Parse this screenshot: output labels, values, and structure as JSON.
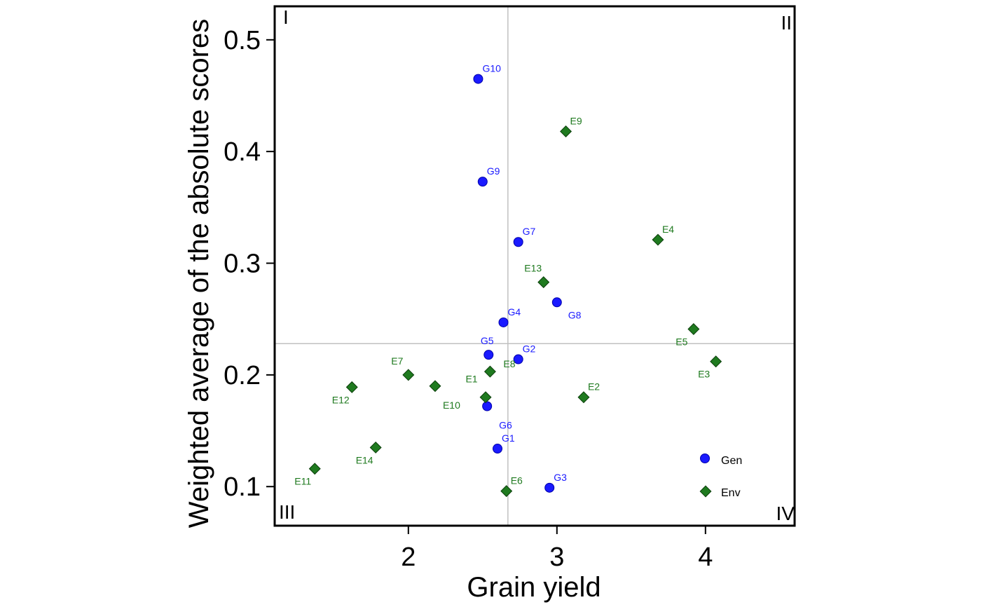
{
  "chart_data": {
    "type": "scatter",
    "xlabel": "Grain yield",
    "ylabel": "Weighted average of the absolute scores",
    "xlim": [
      1.1,
      4.6
    ],
    "ylim": [
      0.065,
      0.53
    ],
    "xticks": [
      2,
      3,
      4
    ],
    "yticks": [
      0.1,
      0.2,
      0.3,
      0.4,
      0.5
    ],
    "xtick_labels": [
      "2",
      "3",
      "4"
    ],
    "ytick_labels": [
      "0.1",
      "0.2",
      "0.3",
      "0.4",
      "0.5"
    ],
    "reference_lines": {
      "x": 2.67,
      "y": 0.228
    },
    "quadrant_labels": {
      "top_left": "I",
      "top_right": "II",
      "bottom_left": "III",
      "bottom_right": "IV"
    },
    "grid": false,
    "legend_position": "bottom-right",
    "colors": {
      "Gen": "#1a1aff",
      "Env": "#1f7a1f",
      "reference": "#c0c0c0"
    },
    "series": [
      {
        "name": "Gen",
        "marker": "circle",
        "points": [
          {
            "label": "G1",
            "x": 2.6,
            "y": 0.134
          },
          {
            "label": "G2",
            "x": 2.74,
            "y": 0.214
          },
          {
            "label": "G3",
            "x": 2.95,
            "y": 0.099
          },
          {
            "label": "G4",
            "x": 2.64,
            "y": 0.247
          },
          {
            "label": "G5",
            "x": 2.54,
            "y": 0.218
          },
          {
            "label": "G6",
            "x": 2.53,
            "y": 0.172
          },
          {
            "label": "G7",
            "x": 2.74,
            "y": 0.319
          },
          {
            "label": "G8",
            "x": 3.0,
            "y": 0.265
          },
          {
            "label": "G9",
            "x": 2.5,
            "y": 0.373
          },
          {
            "label": "G10",
            "x": 2.47,
            "y": 0.465
          }
        ]
      },
      {
        "name": "Env",
        "marker": "diamond",
        "points": [
          {
            "label": "E1",
            "x": 2.52,
            "y": 0.18
          },
          {
            "label": "E2",
            "x": 3.18,
            "y": 0.18
          },
          {
            "label": "E3",
            "x": 4.07,
            "y": 0.212
          },
          {
            "label": "E4",
            "x": 3.68,
            "y": 0.321
          },
          {
            "label": "E5",
            "x": 3.92,
            "y": 0.241
          },
          {
            "label": "E6",
            "x": 2.66,
            "y": 0.096
          },
          {
            "label": "E7",
            "x": 2.0,
            "y": 0.2
          },
          {
            "label": "E8",
            "x": 2.55,
            "y": 0.203
          },
          {
            "label": "E9",
            "x": 3.06,
            "y": 0.418
          },
          {
            "label": "E10",
            "x": 2.18,
            "y": 0.19
          },
          {
            "label": "E11",
            "x": 1.37,
            "y": 0.116
          },
          {
            "label": "E12",
            "x": 1.62,
            "y": 0.189
          },
          {
            "label": "E13",
            "x": 2.91,
            "y": 0.283
          },
          {
            "label": "E14",
            "x": 1.78,
            "y": 0.135
          }
        ]
      }
    ]
  }
}
